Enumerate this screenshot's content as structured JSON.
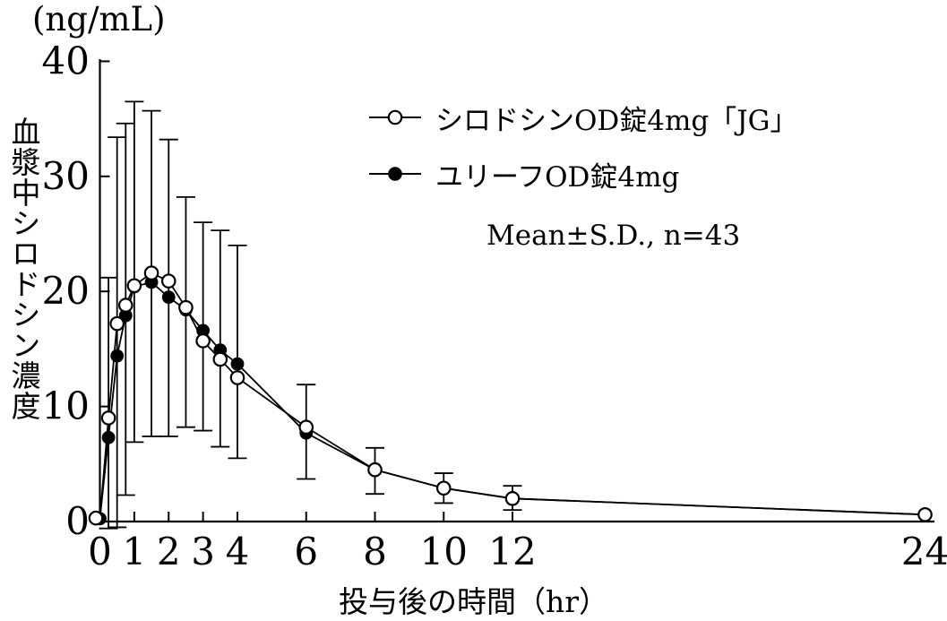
{
  "unit_label": "(ng/mL)",
  "y_axis": {
    "title": "血漿中シロドシン濃度",
    "ticks": [
      0,
      10,
      20,
      30,
      40
    ],
    "tick_labels": [
      "0",
      "10",
      "20",
      "30",
      "40"
    ],
    "range": [
      0,
      40
    ]
  },
  "x_axis": {
    "title": "投与後の時間（hr）",
    "ticks": [
      0,
      1,
      2,
      3,
      4,
      6,
      8,
      10,
      12,
      24
    ],
    "tick_labels": [
      "0",
      "1",
      "2",
      "3",
      "4",
      "6",
      "8",
      "10",
      "12",
      "24"
    ],
    "range": [
      0,
      24.5
    ]
  },
  "legend": {
    "series1_label": "シロドシンOD錠4mg「JG」",
    "series2_label": "ユリーフOD錠4mg",
    "note": "Mean±S.D., n=43"
  },
  "colors": {
    "foreground": "#000000",
    "background": "#ffffff"
  },
  "chart_data": {
    "type": "line",
    "title": "",
    "xlabel": "投与後の時間（hr）",
    "ylabel": "血漿中シロドシン濃度 (ng/mL)",
    "xlim": [
      0,
      24.5
    ],
    "ylim": [
      0,
      40
    ],
    "grid": false,
    "legend_position": "upper-right-inside",
    "x": [
      0,
      0.25,
      0.5,
      0.75,
      1,
      1.5,
      2,
      2.5,
      3,
      3.5,
      4,
      6,
      8,
      10,
      12,
      24
    ],
    "series": [
      {
        "name": "シロドシンOD錠4mg「JG」",
        "marker": "open-circle",
        "values": [
          0.3,
          9.0,
          17.2,
          18.8,
          20.5,
          21.6,
          20.9,
          18.6,
          15.7,
          14.1,
          12.5,
          8.2,
          4.5,
          2.9,
          2.0,
          0.6
        ]
      },
      {
        "name": "ユリーフOD錠4mg",
        "marker": "filled-circle",
        "values": [
          0.25,
          7.3,
          14.4,
          17.9,
          20.4,
          20.8,
          19.5,
          18.4,
          16.6,
          14.9,
          13.7,
          7.7,
          4.5,
          2.9,
          2.0,
          0.6
        ]
      }
    ],
    "error_bars": {
      "note": "Mean±S.D., n=43",
      "x": [
        0.25,
        0.5,
        0.75,
        1,
        1.5,
        2,
        2.5,
        3,
        3.5,
        4,
        6,
        8,
        10,
        12
      ],
      "low": [
        -0.6,
        -0.5,
        2.3,
        6.9,
        7.4,
        7.4,
        8.2,
        7.9,
        6.5,
        5.5,
        3.7,
        2.4,
        1.6,
        1.0
      ],
      "high": [
        21.2,
        33.4,
        34.6,
        36.5,
        35.7,
        33.2,
        28.2,
        26.0,
        25.3,
        24.0,
        11.9,
        6.4,
        4.2,
        3.1
      ]
    }
  }
}
